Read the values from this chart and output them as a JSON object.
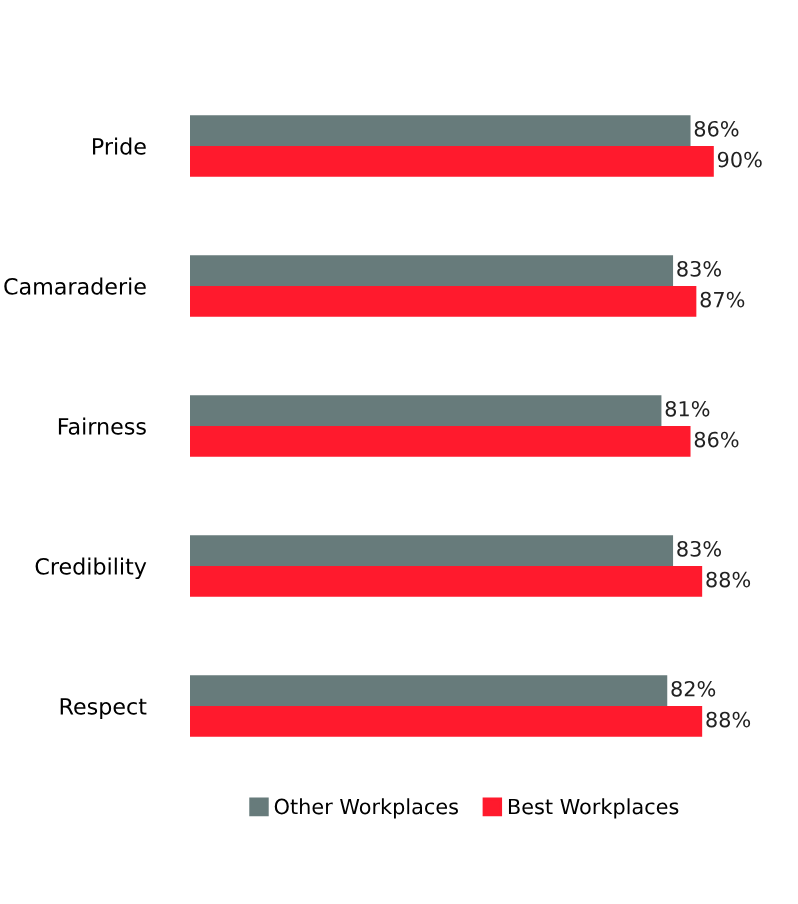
{
  "chart_data": {
    "type": "bar",
    "orientation": "horizontal",
    "categories": [
      "Pride",
      "Camaraderie",
      "Fairness",
      "Credibility",
      "Respect"
    ],
    "series": [
      {
        "name": "Other Workplaces",
        "color": "#677b7b",
        "values": [
          86,
          83,
          81,
          83,
          82
        ],
        "value_labels": [
          "86%",
          "83%",
          "81%",
          "83%",
          "82%"
        ]
      },
      {
        "name": "Best Workplaces",
        "color": "#ff1a2d",
        "values": [
          90,
          87,
          86,
          88,
          88
        ],
        "value_labels": [
          "90%",
          "87%",
          "86%",
          "88%",
          "88%"
        ]
      }
    ],
    "tick_labels": "y",
    "grid": false,
    "legend": "bottom"
  }
}
